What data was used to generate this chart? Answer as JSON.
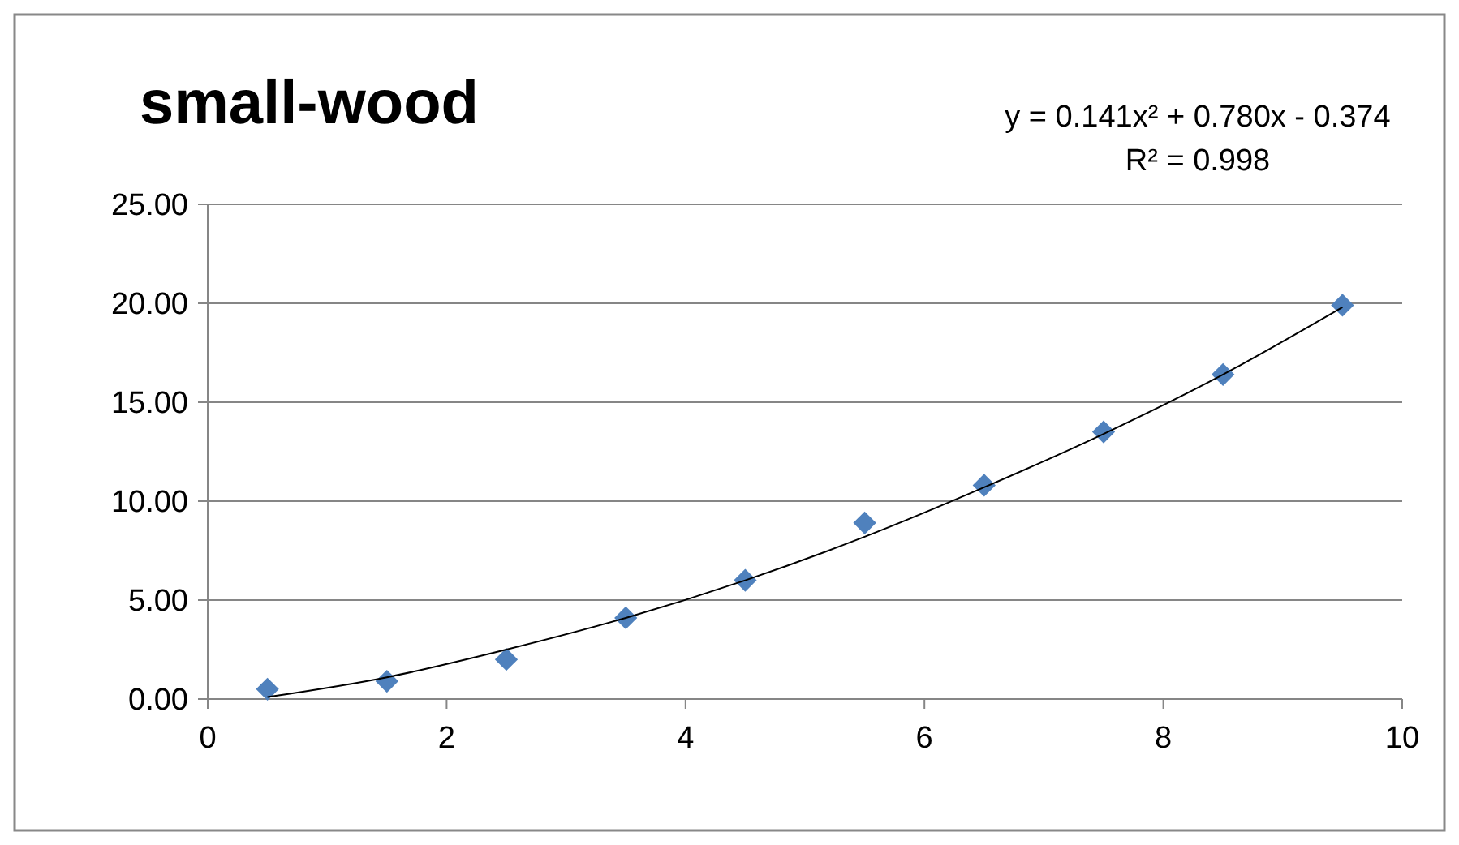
{
  "chart_data": {
    "type": "scatter",
    "title": "small-wood",
    "annotations": [
      "y = 0.141x² + 0.780x - 0.374",
      "R² = 0.998"
    ],
    "xlim": [
      0,
      10
    ],
    "xticks": [
      0,
      2,
      4,
      6,
      8,
      10
    ],
    "ylim": [
      0,
      25
    ],
    "yticks": [
      {
        "value": 0,
        "label": "0.00"
      },
      {
        "value": 5,
        "label": "5.00"
      },
      {
        "value": 10,
        "label": "10.00"
      },
      {
        "value": 15,
        "label": "15.00"
      },
      {
        "value": 20,
        "label": "20.00"
      },
      {
        "value": 25,
        "label": "25.00"
      }
    ],
    "grid": "y",
    "series": [
      {
        "marker": "diamond",
        "color": "#4f81bd",
        "x": [
          0.5,
          1.5,
          2.5,
          3.5,
          4.5,
          5.5,
          6.5,
          7.5,
          8.5,
          9.5
        ],
        "values": [
          0.5,
          0.9,
          2.0,
          4.1,
          6.0,
          8.9,
          10.8,
          13.5,
          16.4,
          19.9
        ]
      },
      {
        "type": "line",
        "color": "#000000",
        "line_style": "solid",
        "marker": "none",
        "x": [
          0.5,
          1.5,
          2.5,
          3.5,
          4.5,
          5.5,
          6.5,
          7.5,
          8.5,
          9.5
        ],
        "values": [
          0.1,
          1.1,
          2.5,
          4.1,
          6.0,
          8.2,
          10.7,
          13.4,
          16.4,
          19.8
        ]
      }
    ]
  }
}
